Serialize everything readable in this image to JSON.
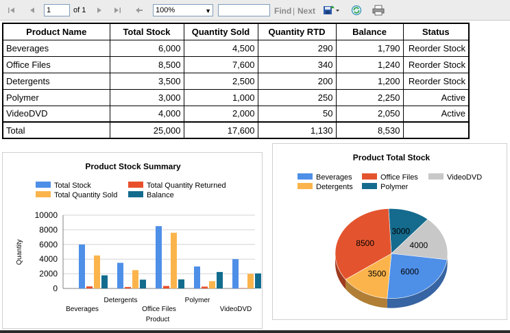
{
  "toolbar": {
    "page_value": "1",
    "of_label": "of 1",
    "zoom": "100%",
    "find_label": "Find",
    "separator": "|",
    "next_label": "Next"
  },
  "table": {
    "headers": [
      "Product Name",
      "Total Stock",
      "Quantity Sold",
      "Quantity  RTD",
      "Balance",
      "Status"
    ],
    "rows": [
      [
        "Beverages",
        "6,000",
        "4,500",
        "290",
        "1,790",
        "Reorder Stock"
      ],
      [
        "Office Files",
        "8,500",
        "7,600",
        "340",
        "1,240",
        "Reorder Stock"
      ],
      [
        "Detergents",
        "3,500",
        "2,500",
        "200",
        "1,200",
        "Reorder Stock"
      ],
      [
        "Polymer",
        "3,000",
        "1,000",
        "250",
        "2,250",
        "Active"
      ],
      [
        "VideoDVD",
        "4,000",
        "2,000",
        "50",
        "2,050",
        "Active"
      ]
    ],
    "total": [
      "Total",
      "25,000",
      "17,600",
      "1,130",
      "8,530",
      ""
    ]
  },
  "chart_data": [
    {
      "type": "bar",
      "title": "Product Stock Summary",
      "xlabel": "Product",
      "ylabel": "Quantity",
      "categories": [
        "Beverages",
        "Detergents",
        "Office Files",
        "Polymer",
        "VideoDVD"
      ],
      "series": [
        {
          "name": "Total Stock",
          "color": "#4e8fe8",
          "values": [
            6000,
            3500,
            8500,
            3000,
            4000
          ]
        },
        {
          "name": "Total Quantity Sold",
          "color": "#fbb44c",
          "values": [
            4500,
            2500,
            7600,
            1000,
            2000
          ]
        },
        {
          "name": "Total Quantity Returned",
          "color": "#e8502c",
          "values": [
            290,
            200,
            340,
            250,
            50
          ]
        },
        {
          "name": "Balance",
          "color": "#136c8e",
          "values": [
            1790,
            1200,
            1240,
            2250,
            2050
          ]
        }
      ],
      "ylim": [
        0,
        10000
      ],
      "yticks": [
        "0",
        "2000",
        "4000",
        "6000",
        "8000",
        "10000"
      ],
      "grid": true,
      "legend": "top"
    },
    {
      "type": "pie",
      "title": "Product Total Stock",
      "labels": [
        "Beverages",
        "Office Files",
        "VideoDVD",
        "Detergents",
        "Polymer"
      ],
      "values": [
        6000,
        8500,
        4000,
        3500,
        3000
      ],
      "colors": [
        "#4e8fe8",
        "#e3542e",
        "#c8c8c8",
        "#fbb44c",
        "#156b8e"
      ],
      "legend": "top"
    }
  ]
}
